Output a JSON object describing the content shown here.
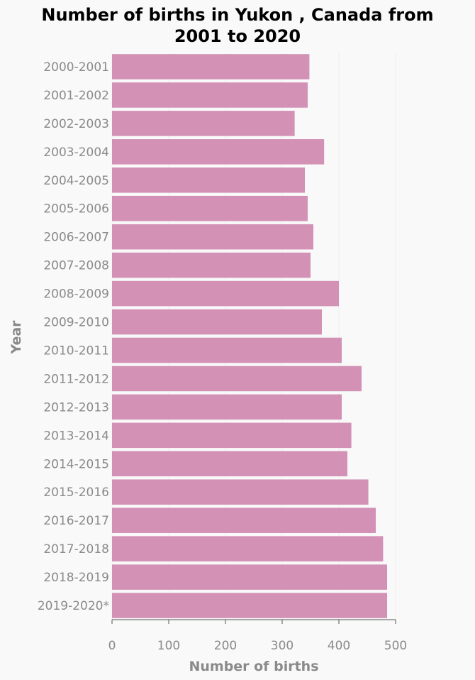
{
  "chart_data": {
    "type": "bar",
    "orientation": "horizontal",
    "title_line1": "Number of births in Yukon , Canada from",
    "title_line2": "2001 to 2020",
    "xlabel": "Number of births",
    "ylabel": "Year",
    "xlim": [
      0,
      500
    ],
    "xticks": [
      "0",
      "100",
      "200",
      "300",
      "400",
      "500"
    ],
    "grid": "vertical, faint",
    "color": "#d291b5",
    "categories": [
      "2000-2001",
      "2001-2002",
      "2002-2003",
      "2003-2004",
      "2004-2005",
      "2005-2006",
      "2006-2007",
      "2007-2008",
      "2008-2009",
      "2009-2010",
      "2010-2011",
      "2011-2012",
      "2012-2013",
      "2013-2014",
      "2014-2015",
      "2015-2016",
      "2016-2017",
      "2017-2018",
      "2018-2019",
      "2019-2020*"
    ],
    "values": [
      348,
      345,
      322,
      374,
      340,
      345,
      355,
      350,
      400,
      370,
      405,
      440,
      405,
      422,
      415,
      452,
      465,
      478,
      485,
      485
    ]
  }
}
